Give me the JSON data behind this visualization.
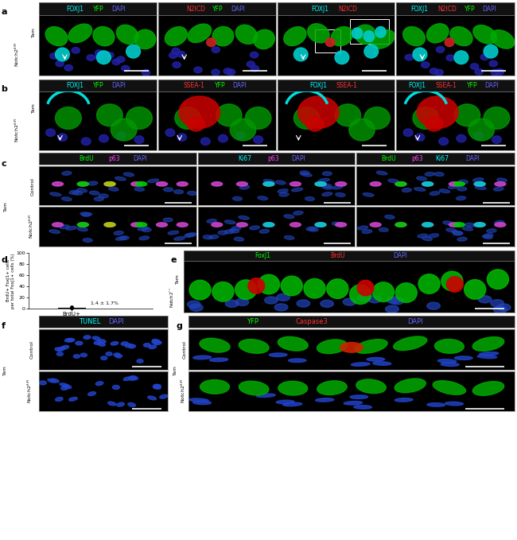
{
  "panel_a_labels": [
    [
      "FOXJ1",
      " ",
      "YFP",
      " ",
      "DAPI"
    ],
    [
      "N2ICD",
      " ",
      "YFP",
      " ",
      "DAPI"
    ],
    [
      "FOXJ1",
      " ",
      "N2ICD"
    ],
    [
      "FOXJ1",
      " ",
      "N2ICD",
      " ",
      "YFP",
      " ",
      "DAPI"
    ]
  ],
  "panel_a_label_colors": [
    [
      "#00ffff",
      "w",
      "#00ff00",
      "w",
      "#6666ff"
    ],
    [
      "#ff3333",
      "w",
      "#00ff00",
      "w",
      "#6666ff"
    ],
    [
      "#00ffff",
      "w",
      "#ff3333"
    ],
    [
      "#00ffff",
      "w",
      "#ff3333",
      "w",
      "#00ff00",
      "w",
      "#6666ff"
    ]
  ],
  "panel_b_labels": [
    [
      "FOXJ1",
      " ",
      "YFP",
      " ",
      "DAPI"
    ],
    [
      "SSEA-1",
      " ",
      "YFP",
      " ",
      "DAPI"
    ],
    [
      "FOXJ1",
      " ",
      "SSEA-1"
    ],
    [
      "FOXJ1",
      " ",
      "SSEA-1",
      " ",
      "YFP",
      " ",
      "DAPI"
    ]
  ],
  "panel_b_label_colors": [
    [
      "#00ffff",
      "w",
      "#00ff00",
      "w",
      "#6666ff"
    ],
    [
      "#ff3333",
      "w",
      "#00ff00",
      "w",
      "#6666ff"
    ],
    [
      "#00ffff",
      "w",
      "#ff3333"
    ],
    [
      "#00ffff",
      "w",
      "#ff3333",
      "w",
      "#00ff00",
      "w",
      "#6666ff"
    ]
  ],
  "panel_c_labels": [
    [
      "BrdU",
      " ",
      "p63",
      " ",
      "DAPI"
    ],
    [
      "Ki67",
      " ",
      "p63",
      " ",
      "DAPI"
    ],
    [
      "BrdU",
      " ",
      "p63",
      " ",
      "Ki67",
      " ",
      "DAPI"
    ]
  ],
  "panel_c_label_colors": [
    [
      "#00ff00",
      "w",
      "#ff44ff",
      "w",
      "#6666ff"
    ],
    [
      "#00ffff",
      "w",
      "#ff44ff",
      "w",
      "#6666ff"
    ],
    [
      "#00ff00",
      "w",
      "#ff44ff",
      "w",
      "#00ffff",
      "w",
      "#6666ff"
    ]
  ],
  "panel_e_labels": [
    "FoxJ1",
    " ",
    "BrdU",
    " ",
    "DAPI"
  ],
  "panel_e_label_colors": [
    "#00ff00",
    "w",
    "#ff3333",
    "w",
    "#6666ff"
  ],
  "panel_f_labels": [
    "TUNEL",
    " ",
    "DAPI"
  ],
  "panel_f_label_colors": [
    "#00ffff",
    "w",
    "#6666ff"
  ],
  "panel_g_labels": [
    "YFP",
    " ",
    "Caspase3",
    " ",
    "DAPI"
  ],
  "panel_g_label_colors": [
    "#00ff00",
    "w",
    "#ff3333",
    "w",
    "#6666ff"
  ],
  "bg_color": "#000000",
  "header_bg": "#111111",
  "frame_color": "#888888",
  "header_fontsize": 5.5,
  "label_fontsize": 5.0
}
